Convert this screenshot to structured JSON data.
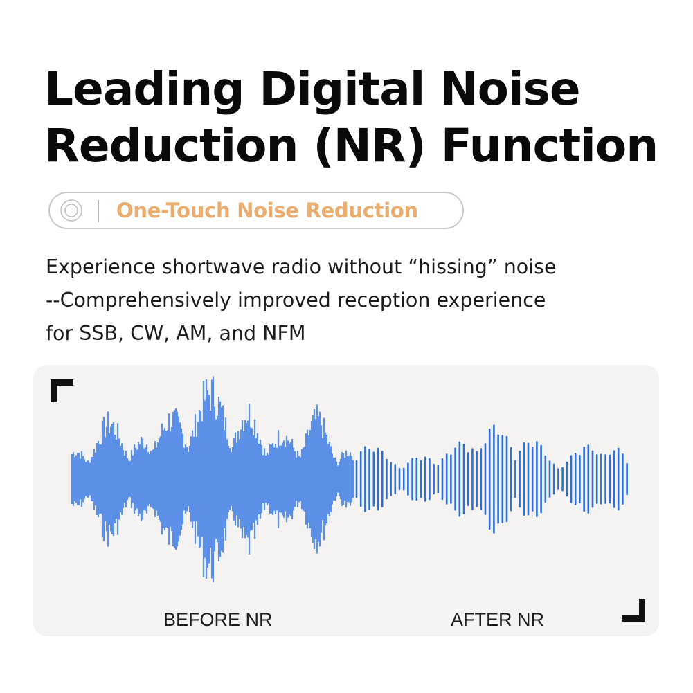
{
  "headline": {
    "line1": "Leading Digital Noise",
    "line2": "Reduction (NR) Function"
  },
  "badge": {
    "icon": "radio-button-icon",
    "label": "One-Touch Noise Reduction"
  },
  "description": {
    "line1": "Experience shortwave radio without “hissing” noise",
    "line2": "--Comprehensively improved reception experience",
    "line3": "for SSB, CW, AM, and NFM"
  },
  "comparison": {
    "before_label": "BEFORE NR",
    "after_label": "AFTER NR"
  },
  "colors": {
    "accent": "#e8ad6f",
    "wave_before": "#4d86e6",
    "wave_after": "#2f6fd1",
    "panel_bg": "#f4f3f2"
  }
}
